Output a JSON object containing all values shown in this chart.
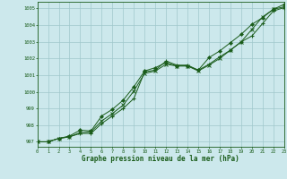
{
  "title": "Graphe pression niveau de la mer (hPa)",
  "bg_color": "#cce8ec",
  "grid_color": "#a0c8cc",
  "line_color": "#1a5c1a",
  "xlim": [
    0,
    23
  ],
  "ylim": [
    996.7,
    1005.4
  ],
  "xticks": [
    0,
    1,
    2,
    3,
    4,
    5,
    6,
    7,
    8,
    9,
    10,
    11,
    12,
    13,
    14,
    15,
    16,
    17,
    18,
    19,
    20,
    21,
    22,
    23
  ],
  "yticks": [
    997,
    998,
    999,
    1000,
    1001,
    1002,
    1003,
    1004,
    1005
  ],
  "series1_x": [
    0,
    1,
    2,
    3,
    4,
    5,
    6,
    7,
    8,
    9,
    10,
    11,
    12,
    13,
    14,
    15,
    16,
    17,
    18,
    19,
    20,
    21,
    22,
    23
  ],
  "series1_y": [
    997.0,
    997.0,
    997.2,
    997.3,
    997.5,
    997.5,
    998.1,
    998.55,
    999.0,
    999.6,
    1001.2,
    1001.3,
    1001.85,
    1001.6,
    1001.6,
    1001.3,
    1001.65,
    1002.1,
    1002.5,
    1003.0,
    1003.35,
    1004.1,
    1004.85,
    1005.05
  ],
  "series2_x": [
    0,
    1,
    2,
    3,
    4,
    5,
    6,
    7,
    8,
    9,
    10,
    11,
    12,
    13,
    14,
    15,
    16,
    17,
    18,
    19,
    20,
    21,
    22,
    23
  ],
  "series2_y": [
    997.0,
    997.0,
    997.2,
    997.3,
    997.55,
    997.6,
    998.25,
    998.7,
    999.2,
    1000.05,
    1001.1,
    1001.25,
    1001.65,
    1001.55,
    1001.55,
    1001.25,
    1001.6,
    1002.0,
    1002.5,
    1003.0,
    1003.75,
    1004.5,
    1004.95,
    1005.1
  ],
  "series3_x": [
    0,
    1,
    2,
    3,
    4,
    5,
    6,
    7,
    8,
    9,
    10,
    11,
    12,
    13,
    14,
    15,
    16,
    17,
    18,
    19,
    20,
    21,
    22,
    23
  ],
  "series3_y": [
    997.0,
    997.0,
    997.2,
    997.35,
    997.7,
    997.65,
    998.55,
    998.95,
    999.5,
    1000.3,
    1001.25,
    1001.45,
    1001.75,
    1001.55,
    1001.55,
    1001.3,
    1002.05,
    1002.45,
    1002.95,
    1003.45,
    1004.05,
    1004.45,
    1004.95,
    1005.25
  ]
}
